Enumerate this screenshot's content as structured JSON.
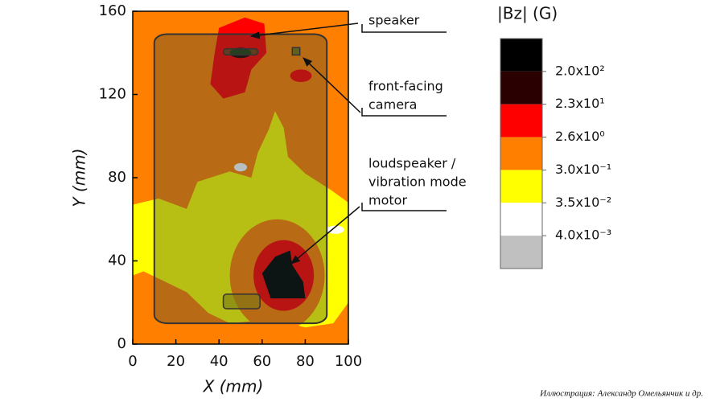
{
  "chart_data": {
    "type": "contour",
    "xlabel": "X (mm)",
    "ylabel": "Y (mm)",
    "xlim": [
      0,
      100
    ],
    "ylim": [
      0,
      160
    ],
    "xticks": [
      0,
      20,
      40,
      60,
      80,
      100
    ],
    "yticks": [
      0,
      40,
      80,
      120,
      160
    ],
    "colorbar": {
      "title": "|Bz| (G)",
      "colors": [
        "#000000",
        "#2a0000",
        "#ff0000",
        "#ff8000",
        "#ffff00",
        "#ffffff",
        "#c0c0c0"
      ],
      "ticks": [
        {
          "value": 200,
          "label": "2.0x10²"
        },
        {
          "value": 23,
          "label": "2.3x10¹"
        },
        {
          "value": 2.6,
          "label": "2.6x10⁰"
        },
        {
          "value": 0.3,
          "label": "3.0x10⁻¹"
        },
        {
          "value": 0.035,
          "label": "3.5x10⁻²"
        },
        {
          "value": 0.004,
          "label": "4.0x10⁻³"
        }
      ]
    },
    "annotations": [
      {
        "lines": [
          "speaker"
        ]
      },
      {
        "lines": [
          "front-facing",
          "camera"
        ]
      },
      {
        "lines": [
          "loudspeaker /",
          "vibration mode",
          "motor"
        ]
      }
    ]
  },
  "credit": "Иллюстрация: Александр Омельянчик и др."
}
